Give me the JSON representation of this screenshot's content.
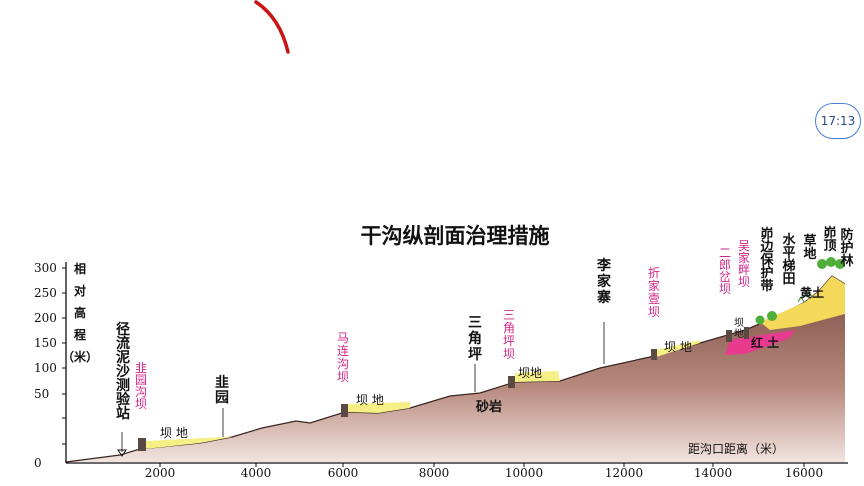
{
  "time": "17:13",
  "title": "干沟纵剖面治理措施",
  "y_axis_label": [
    "相",
    "对",
    "高",
    "程",
    "（米）"
  ],
  "y_ticks": [
    "300",
    "250",
    "200",
    "150",
    "100",
    "50",
    "0"
  ],
  "x_ticks": [
    "2000",
    "4000",
    "6000",
    "8000",
    "10000",
    "12000",
    "14000",
    "16000"
  ],
  "x_axis_label": "距沟口距离（米）",
  "labels": {
    "station": [
      "径",
      "流",
      "泥",
      "沙",
      "测",
      "验",
      "站"
    ],
    "jiuyuan_dam": [
      "韭",
      "园",
      "沟",
      "坝"
    ],
    "jiuyuan": [
      "韭",
      "园"
    ],
    "malian_dam": [
      "马",
      "连",
      "沟",
      "坝"
    ],
    "sanjiaoping": [
      "三",
      "角",
      "坪"
    ],
    "sanjiaoping_dam": [
      "三",
      "角",
      "坪",
      "坝"
    ],
    "lijiazhai": [
      "李",
      "家",
      "寨"
    ],
    "zhejia_dam": [
      "折",
      "家",
      "壹",
      "坝"
    ],
    "erlang_dam": [
      "二",
      "郎",
      "岔",
      "坝"
    ],
    "wujia_dam": [
      "吴",
      "家",
      "畔",
      "坝"
    ],
    "edge_belt": [
      "峁",
      "边",
      "保",
      "护",
      "带"
    ],
    "terrace": [
      "水",
      "平",
      "梯",
      "田"
    ],
    "grassland": [
      "草",
      "地"
    ],
    "top": [
      "峁",
      "顶"
    ],
    "forest": [
      "防",
      "护",
      "林"
    ],
    "damland": "坝 地",
    "damland_short": "坝地",
    "damland_vertical": [
      "坝",
      "地"
    ],
    "sandstone": "砂岩",
    "red_soil": "红 土",
    "yellow_soil": "黄土"
  },
  "colors": {
    "terrain": "#8c5a4e",
    "damland": "#f6ef86",
    "red_soil": "#e83a8e",
    "yellow_soil": "#f3d85a",
    "tree": "#4fae3a",
    "place_text": "#111111",
    "dam_text": "#d2258a"
  }
}
